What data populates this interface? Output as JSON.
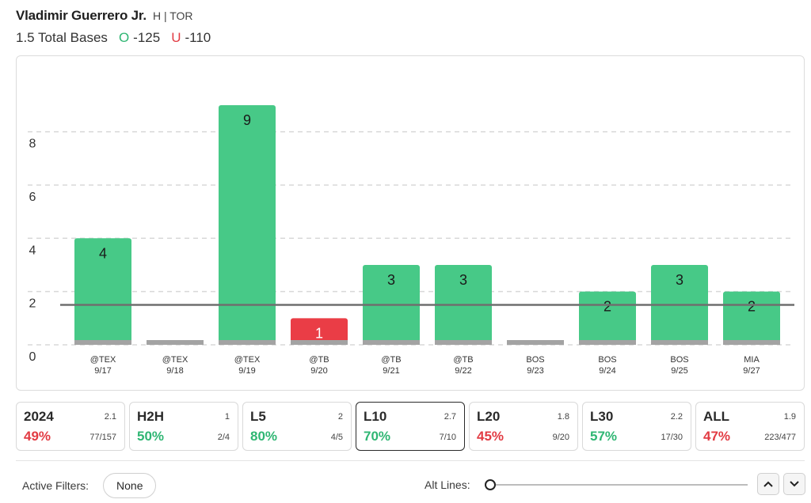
{
  "player": {
    "name": "Vladimir Guerrero Jr.",
    "meta": "H | TOR"
  },
  "prop": {
    "label": "1.5 Total Bases",
    "over_symbol": "O",
    "over_odds": "-125",
    "under_symbol": "U",
    "under_odds": "-110"
  },
  "colors": {
    "over": "#47c987",
    "under": "#ea3d46",
    "base": "#a3a3a3",
    "line": "#6f6f6f",
    "grid": "#d8d8d8"
  },
  "chart_data": {
    "type": "bar",
    "title": "",
    "xlabel": "",
    "ylabel": "",
    "ylim": [
      0,
      9.8
    ],
    "yticks": [
      0,
      2,
      4,
      6,
      8
    ],
    "grid": "dashed horizontal",
    "line_value": 1.5,
    "categories": [
      {
        "opp": "@TEX",
        "date": "9/17"
      },
      {
        "opp": "@TEX",
        "date": "9/18"
      },
      {
        "opp": "@TEX",
        "date": "9/19"
      },
      {
        "opp": "@TB",
        "date": "9/20"
      },
      {
        "opp": "@TB",
        "date": "9/21"
      },
      {
        "opp": "@TB",
        "date": "9/22"
      },
      {
        "opp": "BOS",
        "date": "9/23"
      },
      {
        "opp": "BOS",
        "date": "9/24"
      },
      {
        "opp": "BOS",
        "date": "9/25"
      },
      {
        "opp": "MIA",
        "date": "9/27"
      }
    ],
    "values": [
      4,
      0,
      9,
      1,
      3,
      3,
      0,
      2,
      3,
      2
    ],
    "value_labels": [
      "4",
      "",
      "9",
      "1",
      "3",
      "3",
      "",
      "2",
      "3",
      "2"
    ]
  },
  "stats": [
    {
      "label": "2024",
      "avg": "2.1",
      "pct": "49%",
      "frac": "77/157",
      "tone": "bad",
      "selected": false
    },
    {
      "label": "H2H",
      "avg": "1",
      "pct": "50%",
      "frac": "2/4",
      "tone": "good",
      "selected": false
    },
    {
      "label": "L5",
      "avg": "2",
      "pct": "80%",
      "frac": "4/5",
      "tone": "good",
      "selected": false
    },
    {
      "label": "L10",
      "avg": "2.7",
      "pct": "70%",
      "frac": "7/10",
      "tone": "good",
      "selected": true
    },
    {
      "label": "L20",
      "avg": "1.8",
      "pct": "45%",
      "frac": "9/20",
      "tone": "bad",
      "selected": false
    },
    {
      "label": "L30",
      "avg": "2.2",
      "pct": "57%",
      "frac": "17/30",
      "tone": "good",
      "selected": false
    },
    {
      "label": "ALL",
      "avg": "1.9",
      "pct": "47%",
      "frac": "223/477",
      "tone": "bad",
      "selected": false
    }
  ],
  "footer": {
    "filters_label": "Active Filters:",
    "filters_value": "None",
    "alt_lines_label": "Alt Lines:",
    "slider_value": 0
  },
  "icons": {
    "up": "chevron-up-icon",
    "down": "chevron-down-icon"
  }
}
